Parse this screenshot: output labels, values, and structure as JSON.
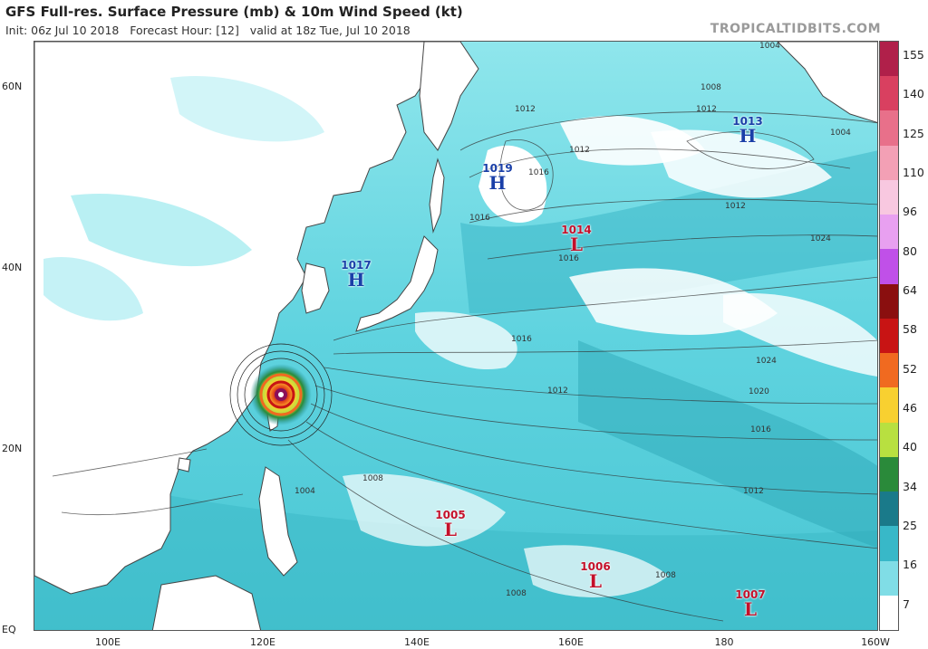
{
  "header": {
    "title": "GFS Full-res. Surface Pressure (mb) & 10m Wind Speed (kt)",
    "subtitle": "Init: 06z Jul 10 2018   Forecast Hour: [12]   valid at 18z Tue, Jul 10 2018",
    "brand": "TROPICALTIDBITS.COM"
  },
  "axes": {
    "lat_labels": [
      "60N",
      "40N",
      "20N",
      "EQ"
    ],
    "lon_labels": [
      "100E",
      "120E",
      "140E",
      "160E",
      "180",
      "160W"
    ]
  },
  "colorbar": {
    "unit": "kt",
    "labels": [
      "155",
      "140",
      "125",
      "110",
      "96",
      "80",
      "64",
      "58",
      "52",
      "46",
      "40",
      "34",
      "25",
      "16",
      "7"
    ],
    "colors": [
      "#b0204a",
      "#d94060",
      "#e8708a",
      "#f3a0b5",
      "#f8c8e0",
      "#e8a0f0",
      "#c050e8",
      "#8a0f0f",
      "#c81414",
      "#f06a20",
      "#f8d030",
      "#b8e040",
      "#2a8a3a",
      "#1a7a8a",
      "#38b8c8",
      "#80dde6",
      "#ffffff"
    ]
  },
  "pressure_systems": [
    {
      "type": "H",
      "value": "1019"
    },
    {
      "type": "H",
      "value": "1017"
    },
    {
      "type": "H",
      "value": "1013"
    },
    {
      "type": "L",
      "value": "1014"
    },
    {
      "type": "L",
      "value": "1005"
    },
    {
      "type": "L",
      "value": "1006"
    },
    {
      "type": "L",
      "value": "1007"
    }
  ],
  "isobar_labels": [
    "1012",
    "1008",
    "1004",
    "1016",
    "1016",
    "1012",
    "1024",
    "1024",
    "1020",
    "1016",
    "1012",
    "1008",
    "1008",
    "1008",
    "1012",
    "1004",
    "1004",
    "1016"
  ],
  "palette": {
    "wind_light": "#7fe3ea",
    "wind_mid": "#3cc2d0",
    "wind_dark": "#1f8fa0",
    "land_outline": "#444444",
    "high_color": "#1a3fa8",
    "low_color": "#c4102a"
  }
}
